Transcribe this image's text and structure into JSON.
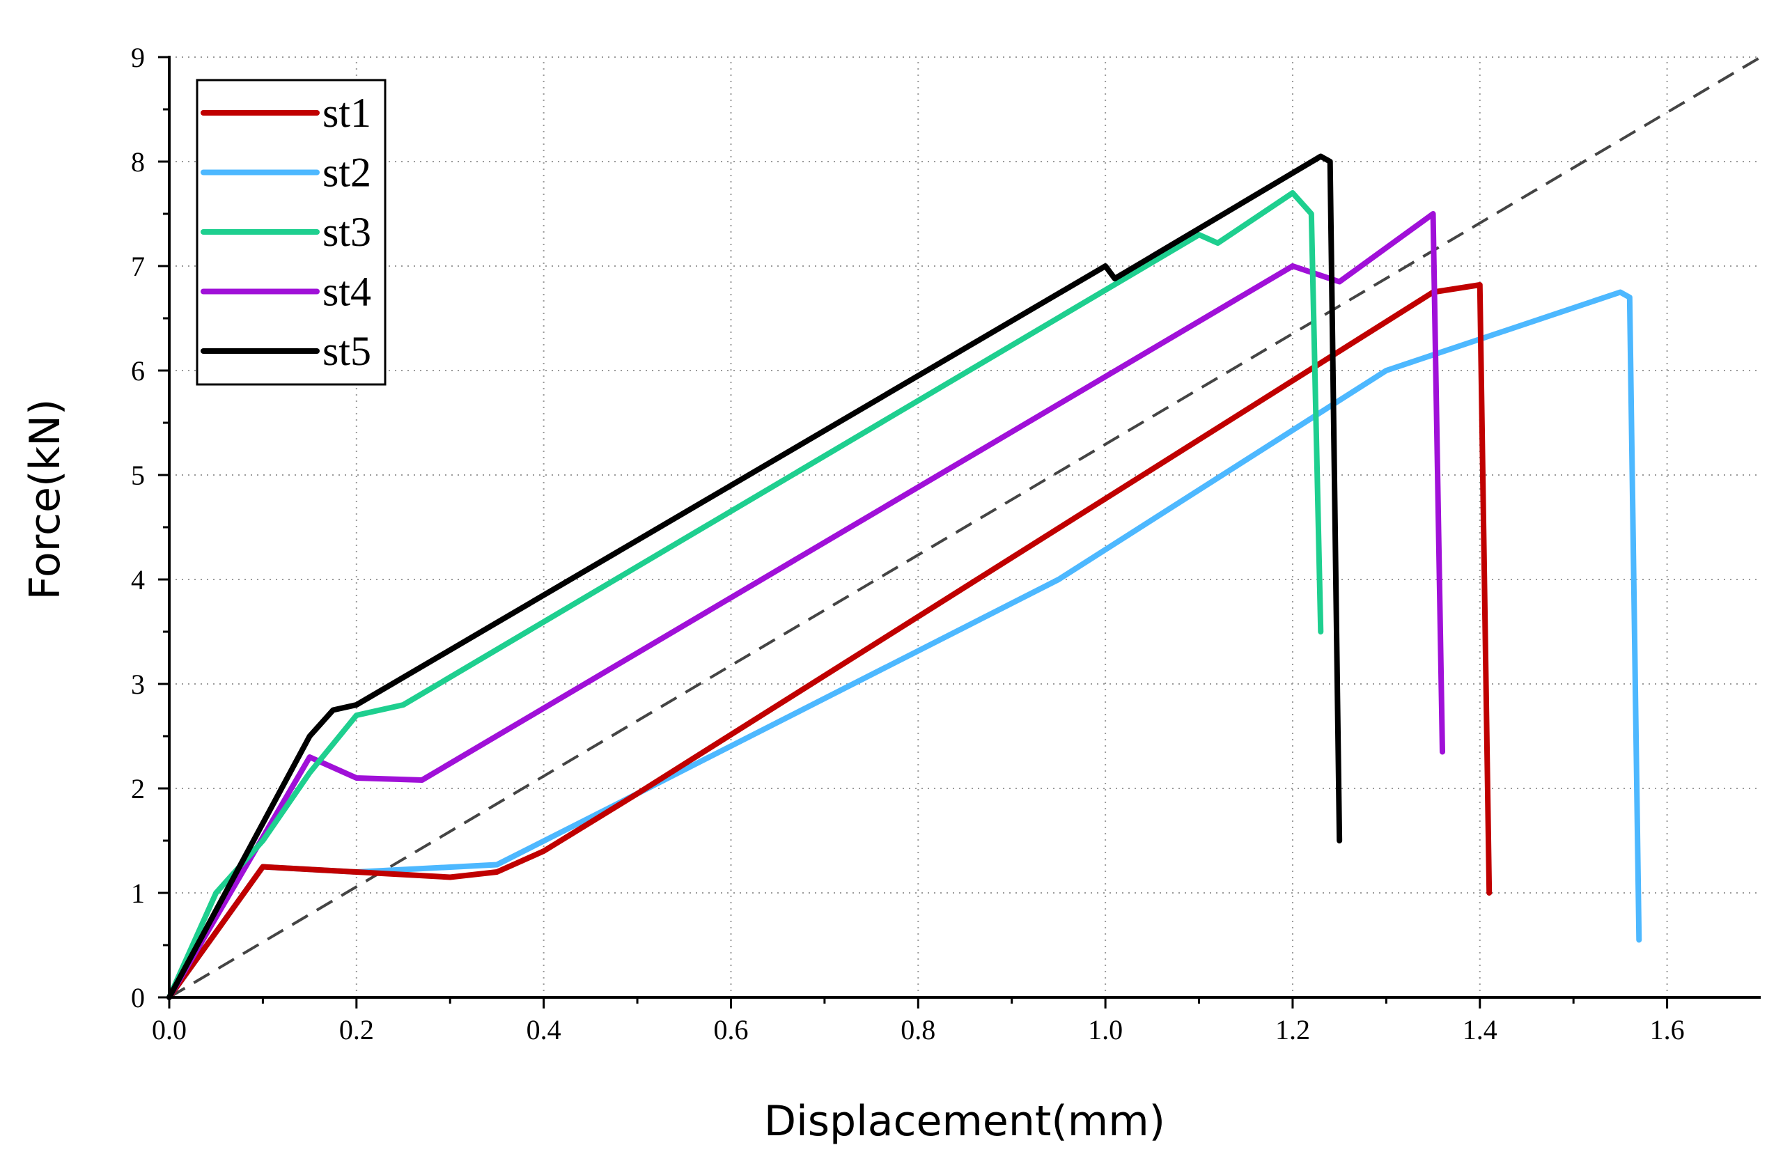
{
  "chart_data": {
    "type": "line",
    "title": "",
    "xlabel": "Displacement(mm)",
    "ylabel": "Force(kN)",
    "xlim": [
      0,
      1.7
    ],
    "ylim": [
      0,
      9
    ],
    "x_ticks": [
      0.0,
      0.2,
      0.4,
      0.6,
      0.8,
      1.0,
      1.2,
      1.4,
      1.6
    ],
    "x_tick_labels": [
      "0.0",
      "0.2",
      "0.4",
      "0.6",
      "0.8",
      "1.0",
      "1.2",
      "1.4",
      "1.6"
    ],
    "y_ticks": [
      0,
      1,
      2,
      3,
      4,
      5,
      6,
      7,
      8,
      9
    ],
    "y_tick_labels": [
      "0",
      "1",
      "2",
      "3",
      "4",
      "5",
      "6",
      "7",
      "8",
      "9"
    ],
    "grid": true,
    "legend_position": "top-left",
    "series": [
      {
        "name": "st1",
        "color": "#C00000",
        "points": [
          [
            0,
            0
          ],
          [
            0.1,
            1.25
          ],
          [
            0.2,
            1.2
          ],
          [
            0.3,
            1.15
          ],
          [
            0.35,
            1.2
          ],
          [
            0.4,
            1.4
          ],
          [
            0.5,
            1.95
          ],
          [
            1.35,
            6.75
          ],
          [
            1.4,
            6.82
          ],
          [
            1.41,
            1.0
          ]
        ]
      },
      {
        "name": "st2",
        "color": "#4DB8FF",
        "points": [
          [
            0,
            0
          ],
          [
            0.1,
            1.25
          ],
          [
            0.2,
            1.2
          ],
          [
            0.35,
            1.27
          ],
          [
            0.5,
            1.95
          ],
          [
            0.95,
            4.0
          ],
          [
            1.3,
            6.0
          ],
          [
            1.55,
            6.75
          ],
          [
            1.56,
            6.7
          ],
          [
            1.57,
            0.55
          ]
        ]
      },
      {
        "name": "st3",
        "color": "#1ECF8F",
        "points": [
          [
            0,
            0
          ],
          [
            0.05,
            1.0
          ],
          [
            0.1,
            1.5
          ],
          [
            0.15,
            2.15
          ],
          [
            0.2,
            2.7
          ],
          [
            0.25,
            2.8
          ],
          [
            1.1,
            7.3
          ],
          [
            1.12,
            7.22
          ],
          [
            1.2,
            7.7
          ],
          [
            1.22,
            7.5
          ],
          [
            1.23,
            3.5
          ]
        ]
      },
      {
        "name": "st4",
        "color": "#A010D8",
        "points": [
          [
            0,
            0
          ],
          [
            0.15,
            2.3
          ],
          [
            0.2,
            2.1
          ],
          [
            0.27,
            2.08
          ],
          [
            1.2,
            7.0
          ],
          [
            1.25,
            6.85
          ],
          [
            1.35,
            7.5
          ],
          [
            1.36,
            2.35
          ]
        ]
      },
      {
        "name": "st5",
        "color": "#000000",
        "points": [
          [
            0,
            0
          ],
          [
            0.15,
            2.5
          ],
          [
            0.175,
            2.75
          ],
          [
            0.2,
            2.8
          ],
          [
            1.0,
            7.0
          ],
          [
            1.01,
            6.88
          ],
          [
            1.23,
            8.05
          ],
          [
            1.24,
            8.0
          ],
          [
            1.25,
            1.5
          ]
        ]
      }
    ],
    "reference_line": {
      "style": "dashed",
      "color": "#444444",
      "points": [
        [
          0,
          0
        ],
        [
          1.7,
          9.0
        ]
      ]
    }
  }
}
